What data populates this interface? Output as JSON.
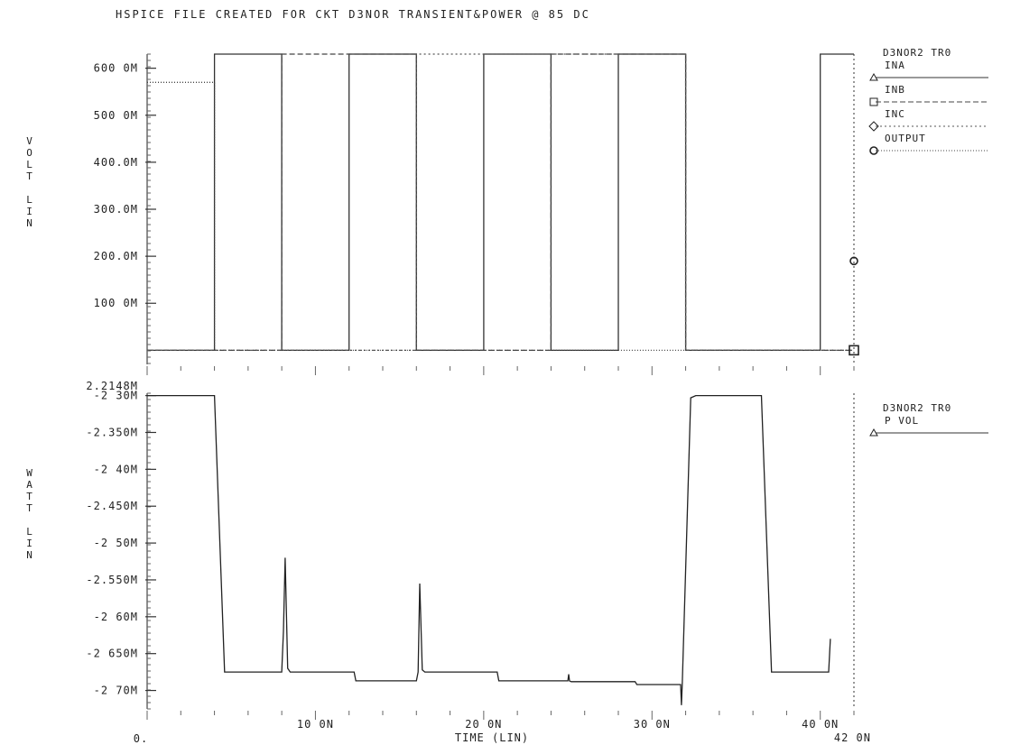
{
  "chart_data": [
    {
      "type": "line",
      "title": "HSPICE FILE CREATED FOR CKT D3NOR TRANSIENT&POWER @ 85 DC",
      "ylabel": [
        "V",
        "O",
        "L",
        "T",
        "",
        "L",
        "I",
        "N"
      ],
      "yticks": [
        "600 0M",
        "500 0M",
        "400.0M",
        "300.0M",
        "200.0M",
        "100 0M"
      ],
      "ytick_values": [
        600,
        500,
        400,
        300,
        200,
        100
      ],
      "ylim": [
        -30,
        630
      ],
      "xlim": [
        0,
        42
      ],
      "legend": {
        "placement": "right",
        "title": "D3NOR2 TR0",
        "entries": [
          "INA",
          "INB",
          "INC",
          "OUTPUT"
        ]
      },
      "series": [
        {
          "name": "INA",
          "x": [
            0,
            4,
            4,
            8,
            8,
            12,
            12,
            16,
            16,
            20,
            20,
            24,
            24,
            28,
            28,
            32,
            32,
            40,
            40,
            42
          ],
          "y": [
            0,
            0,
            630,
            630,
            0,
            0,
            630,
            630,
            0,
            0,
            630,
            630,
            0,
            0,
            630,
            630,
            0,
            0,
            630,
            630
          ]
        },
        {
          "name": "INB",
          "x": [
            0,
            8,
            8,
            16,
            16,
            24,
            24,
            32,
            32,
            42
          ],
          "y": [
            0,
            0,
            630,
            630,
            0,
            0,
            630,
            630,
            0,
            0
          ]
        },
        {
          "name": "INC",
          "x": [
            0,
            16,
            16,
            32,
            32,
            42
          ],
          "y": [
            0,
            0,
            630,
            630,
            0,
            0
          ]
        },
        {
          "name": "OUTPUT",
          "x": [
            0,
            4,
            4,
            42
          ],
          "y": [
            570,
            570,
            0,
            0
          ]
        }
      ]
    },
    {
      "type": "line",
      "ylabel": [
        "W",
        "A",
        "T",
        "T",
        "",
        "L",
        "I",
        "N"
      ],
      "ymax_label": "2.2148M",
      "yticks": [
        "-2 30M",
        "-2.350M",
        "-2 40M",
        "-2.450M",
        "-2 50M",
        "-2.550M",
        "-2 60M",
        "-2 650M",
        "-2 70M"
      ],
      "ytick_values": [
        -2.3,
        -2.35,
        -2.4,
        -2.45,
        -2.5,
        -2.55,
        -2.6,
        -2.65,
        -2.7
      ],
      "ylim": [
        -2.725,
        -2.2968
      ],
      "xlim": [
        0,
        42
      ],
      "xlabel": "TIME (LIN)",
      "xticks": [
        "0.",
        "10 0N",
        "20 0N",
        "30 0N",
        "40 0N"
      ],
      "xtick_values": [
        0,
        10,
        20,
        30,
        40
      ],
      "xend_label": "42 0N",
      "legend": {
        "placement": "right",
        "title": "D3NOR2 TR0",
        "entries": [
          "P VOL"
        ]
      },
      "series": [
        {
          "name": "P VOL",
          "x": [
            0,
            4,
            4.6,
            8,
            8.1,
            8.2,
            8.35,
            8.5,
            12.3,
            12.4,
            16,
            16.1,
            16.2,
            16.35,
            16.5,
            20.8,
            20.9,
            25,
            25.05,
            25.1,
            25.2,
            29,
            29.1,
            31.7,
            31.75,
            31.8,
            32.3,
            32.6,
            36.5,
            37.1,
            40.5,
            40.6
          ],
          "y": [
            -2.3,
            -2.3,
            -2.675,
            -2.675,
            -2.62,
            -2.52,
            -2.67,
            -2.675,
            -2.675,
            -2.687,
            -2.687,
            -2.675,
            -2.555,
            -2.672,
            -2.675,
            -2.675,
            -2.687,
            -2.687,
            -2.678,
            -2.687,
            -2.688,
            -2.688,
            -2.692,
            -2.692,
            -2.72,
            -2.692,
            -2.303,
            -2.3,
            -2.3,
            -2.675,
            -2.675,
            -2.63
          ]
        }
      ]
    }
  ]
}
